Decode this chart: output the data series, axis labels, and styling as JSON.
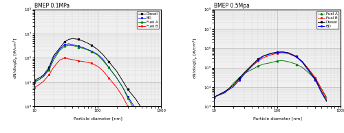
{
  "title_left": "BMEP 0.1MPa",
  "title_right": "BMEP 0.5Mpa",
  "xlabel": "Particle diameter [nm]",
  "ylabel": "dN/dlogD$_p$ [#/cm$^3$]",
  "xlim": [
    10,
    1000
  ],
  "ylim_left": [
    10000.0,
    100000000.0
  ],
  "ylim_right": [
    1000.0,
    100000000.0
  ],
  "bg_color": "#f0f0f0",
  "left_diesel_x": [
    10,
    12,
    14,
    17,
    20,
    25,
    30,
    35,
    40,
    50,
    60,
    70,
    80,
    100,
    120,
    150,
    200,
    250,
    300,
    400,
    500
  ],
  "left_diesel_y": [
    120000.0,
    150000.0,
    200000.0,
    400000.0,
    1200000.0,
    2500000.0,
    4500000.0,
    5800000.0,
    6200000.0,
    5800000.0,
    4800000.0,
    4000000.0,
    3300000.0,
    2200000.0,
    1400000.0,
    700000.0,
    280000.0,
    110000.0,
    50000.0,
    20000.0,
    8000.0
  ],
  "left_bd_x": [
    10,
    12,
    14,
    17,
    20,
    25,
    30,
    35,
    40,
    50,
    60,
    70,
    80,
    100,
    120,
    150,
    200,
    250,
    300,
    400,
    500
  ],
  "left_bd_y": [
    100000.0,
    130000.0,
    180000.0,
    350000.0,
    1000000.0,
    2200000.0,
    3500000.0,
    3800000.0,
    3500000.0,
    3000000.0,
    2600000.0,
    2200000.0,
    1900000.0,
    1400000.0,
    900000.0,
    400000.0,
    150000.0,
    60000.0,
    25000.0,
    8000.0,
    3000.0
  ],
  "left_fuelA_x": [
    10,
    12,
    14,
    17,
    20,
    25,
    30,
    35,
    40,
    50,
    60,
    70,
    80,
    100,
    120,
    150,
    200,
    250,
    300,
    400,
    500
  ],
  "left_fuelA_y": [
    100000.0,
    130000.0,
    170000.0,
    320000.0,
    800000.0,
    2000000.0,
    3000000.0,
    3300000.0,
    3200000.0,
    2800000.0,
    2400000.0,
    2100000.0,
    1800000.0,
    1300000.0,
    800000.0,
    400000.0,
    150000.0,
    60000.0,
    22000.0,
    6000.0,
    2000.0
  ],
  "left_fuelB_x": [
    10,
    12,
    14,
    17,
    20,
    25,
    30,
    35,
    40,
    50,
    60,
    70,
    80,
    100,
    120,
    150,
    200,
    250,
    300,
    400,
    500
  ],
  "left_fuelB_y": [
    60000.0,
    80000.0,
    110000.0,
    200000.0,
    400000.0,
    800000.0,
    1000000.0,
    900000.0,
    850000.0,
    750000.0,
    700000.0,
    650000.0,
    600000.0,
    450000.0,
    300000.0,
    150000.0,
    60000.0,
    25000.0,
    10000.0,
    3500.0,
    1500.0
  ],
  "right_fuelA_x": [
    10,
    15,
    20,
    25,
    30,
    40,
    50,
    60,
    80,
    100,
    120,
    150,
    200,
    250,
    300,
    400,
    500,
    600
  ],
  "right_fuelA_y": [
    3000.0,
    5000.0,
    15000.0,
    30000.0,
    50000.0,
    80000.0,
    120000.0,
    150000.0,
    180000.0,
    220000.0,
    230000.0,
    200000.0,
    150000.0,
    100000.0,
    60000.0,
    25000.0,
    8000.0,
    3000.0
  ],
  "right_fuelB_x": [
    10,
    15,
    20,
    25,
    30,
    40,
    50,
    60,
    80,
    100,
    120,
    150,
    200,
    250,
    300,
    400,
    500,
    600
  ],
  "right_fuelB_y": [
    3000.0,
    6000.0,
    12000.0,
    25000.0,
    50000.0,
    120000.0,
    220000.0,
    320000.0,
    450000.0,
    550000.0,
    580000.0,
    520000.0,
    350000.0,
    200000.0,
    100000.0,
    30000.0,
    8000.0,
    2500.0
  ],
  "right_diesel_x": [
    10,
    15,
    20,
    25,
    30,
    40,
    50,
    60,
    80,
    100,
    120,
    150,
    200,
    250,
    300,
    400,
    500,
    600
  ],
  "right_diesel_y": [
    3000.0,
    6000.0,
    12000.0,
    28000.0,
    55000.0,
    140000.0,
    280000.0,
    400000.0,
    550000.0,
    620000.0,
    650000.0,
    580000.0,
    380000.0,
    200000.0,
    90000.0,
    25000.0,
    6000.0,
    2000.0
  ],
  "right_bd_x": [
    10,
    15,
    20,
    25,
    30,
    40,
    50,
    60,
    80,
    100,
    120,
    150,
    200,
    250,
    300,
    400,
    500,
    600
  ],
  "right_bd_y": [
    3000.0,
    5500.0,
    10000.0,
    22000.0,
    45000.0,
    120000.0,
    250000.0,
    380000.0,
    520000.0,
    600000.0,
    620000.0,
    550000.0,
    350000.0,
    180000.0,
    80000.0,
    22000.0,
    5000.0,
    1800.0
  ]
}
